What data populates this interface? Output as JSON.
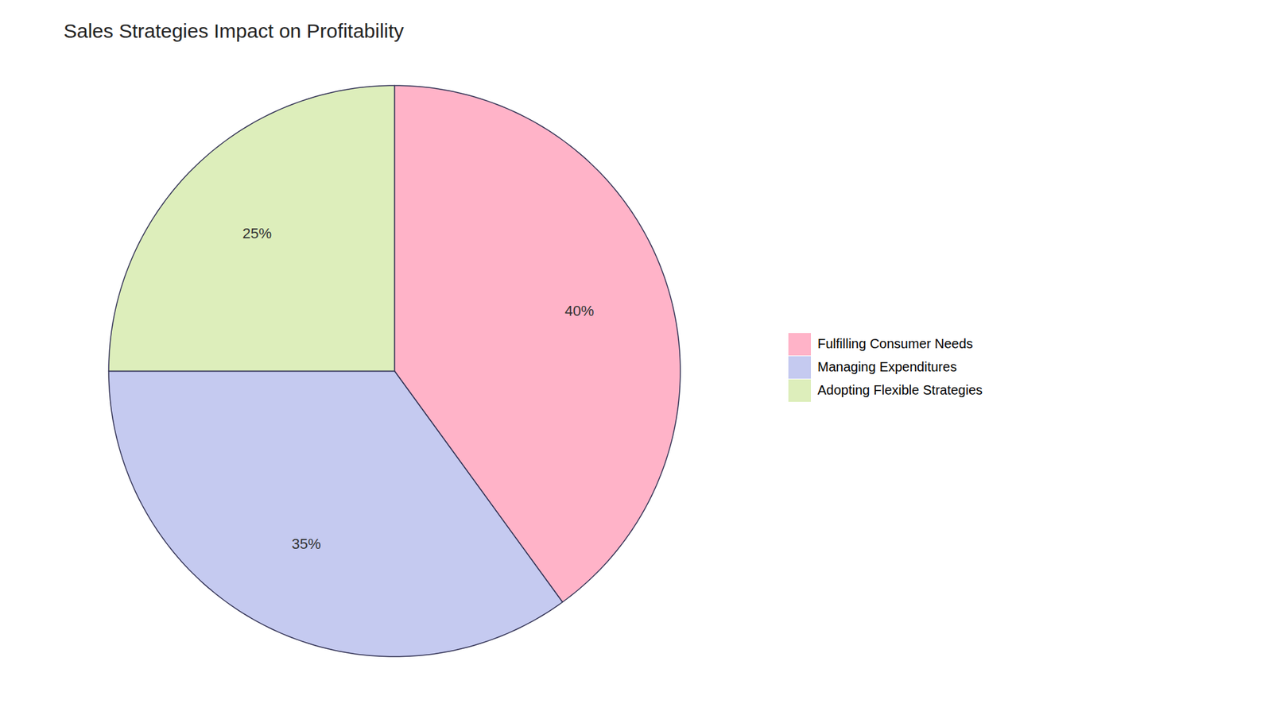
{
  "chart_data": {
    "type": "pie",
    "title": "Sales Strategies Impact on Profitability",
    "categories": [
      "Fulfilling Consumer Needs",
      "Managing Expenditures",
      "Adopting Flexible Strategies"
    ],
    "values": [
      40,
      35,
      25
    ],
    "value_labels": [
      "40%",
      "35%",
      "25%"
    ],
    "colors": [
      "#FFB3C8",
      "#C5CAF0",
      "#DDEEBB"
    ],
    "data_labels": true,
    "legend": "right"
  }
}
